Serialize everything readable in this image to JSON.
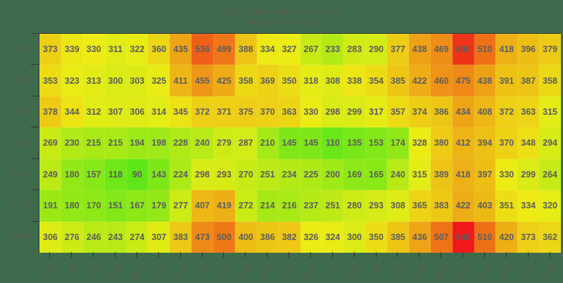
{
  "title": {
    "line1": "EPEX Elektriciteit in eur/per uur",
    "line2": "(afgelopen 7 dagen)"
  },
  "colors": {
    "background": "#3e6b4b",
    "low": "#5ee619",
    "mid": "#ecec14",
    "high": "#f0181a",
    "text": "#5d5d5d"
  },
  "chart_data": {
    "type": "heatmap",
    "title": "EPEX Elektriciteit in eur/per uur (afgelopen 7 dagen)",
    "xlabel": "",
    "ylabel": "",
    "x": [
      "00:00",
      "01:00",
      "02:00",
      "03:00",
      "04:00",
      "05:00",
      "06:00",
      "07:00",
      "08:00",
      "09:00",
      "10:00",
      "11:00",
      "12:00",
      "13:00",
      "14:00",
      "15:00",
      "16:00",
      "17:00",
      "18:00",
      "19:00",
      "20:00",
      "21:00",
      "22:00",
      "23:00"
    ],
    "y": [
      "22-09",
      "23-09",
      "24-09",
      "25-09",
      "26-09",
      "27-09",
      "28-09"
    ],
    "values": [
      [
        373,
        339,
        330,
        311,
        322,
        360,
        435,
        536,
        499,
        388,
        334,
        327,
        267,
        233,
        283,
        290,
        377,
        438,
        469,
        600,
        510,
        418,
        396,
        379
      ],
      [
        353,
        323,
        313,
        300,
        303,
        325,
        411,
        455,
        425,
        358,
        369,
        350,
        318,
        308,
        338,
        354,
        385,
        422,
        460,
        475,
        438,
        391,
        387,
        358
      ],
      [
        378,
        344,
        312,
        307,
        306,
        314,
        345,
        372,
        371,
        375,
        370,
        363,
        330,
        298,
        299,
        317,
        357,
        374,
        386,
        434,
        408,
        372,
        363,
        315
      ],
      [
        269,
        230,
        215,
        215,
        194,
        198,
        228,
        240,
        279,
        287,
        210,
        145,
        145,
        110,
        135,
        153,
        174,
        328,
        380,
        412,
        394,
        370,
        348,
        294
      ],
      [
        249,
        180,
        157,
        118,
        90,
        143,
        224,
        298,
        293,
        270,
        251,
        234,
        225,
        200,
        169,
        165,
        240,
        315,
        389,
        418,
        397,
        330,
        299,
        264
      ],
      [
        191,
        180,
        170,
        151,
        167,
        179,
        277,
        407,
        419,
        272,
        214,
        216,
        237,
        251,
        280,
        293,
        308,
        365,
        383,
        422,
        403,
        351,
        334,
        320
      ],
      [
        306,
        276,
        246,
        243,
        274,
        307,
        383,
        473,
        500,
        400,
        386,
        382,
        326,
        324,
        300,
        350,
        385,
        436,
        507,
        640,
        510,
        420,
        373,
        362
      ]
    ],
    "colorscale": {
      "min": 90,
      "max": 640,
      "colors": [
        "#5ee619",
        "#ecec14",
        "#f0181a"
      ]
    },
    "grid": false,
    "legend": "none"
  }
}
